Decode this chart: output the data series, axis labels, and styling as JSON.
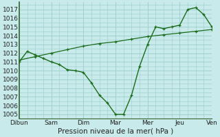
{
  "xlabel": "Pression niveau de la mer( hPa )",
  "background_color": "#c8eaea",
  "grid_color": "#99cccc",
  "line_color": "#1a6b1a",
  "border_color": "#336633",
  "ylim": [
    1004.5,
    1017.8
  ],
  "xlim": [
    0,
    48
  ],
  "yticks": [
    1005,
    1006,
    1007,
    1008,
    1009,
    1010,
    1011,
    1012,
    1013,
    1014,
    1015,
    1016,
    1017
  ],
  "days": [
    "Dibun",
    "Sam",
    "Dim",
    "Mar",
    "Mer",
    "Jeu",
    "Ven"
  ],
  "x_major_ticks": [
    0,
    8,
    16,
    24,
    32,
    40,
    48
  ],
  "line1_x": [
    0,
    2,
    4,
    6,
    8,
    10,
    12,
    14,
    16,
    18,
    20,
    22,
    24,
    26,
    28,
    30,
    32,
    34,
    36,
    38,
    40,
    42,
    44,
    46,
    48
  ],
  "line1_y": [
    1011.0,
    1012.2,
    1011.8,
    1011.4,
    1011.0,
    1010.7,
    1010.1,
    1010.0,
    1009.8,
    1008.6,
    1007.2,
    1006.3,
    1005.0,
    1005.0,
    1007.2,
    1010.5,
    1013.0,
    1015.0,
    1014.8,
    1015.0,
    1015.2,
    1017.0,
    1017.2,
    1016.4,
    1015.0
  ],
  "line2_x": [
    0,
    4,
    8,
    12,
    16,
    20,
    24,
    28,
    32,
    36,
    40,
    44,
    48
  ],
  "line2_y": [
    1011.2,
    1011.6,
    1012.0,
    1012.4,
    1012.8,
    1013.1,
    1013.3,
    1013.6,
    1013.9,
    1014.1,
    1014.3,
    1014.5,
    1014.7
  ],
  "tick_fontsize": 6.5,
  "xlabel_fontsize": 7.5
}
